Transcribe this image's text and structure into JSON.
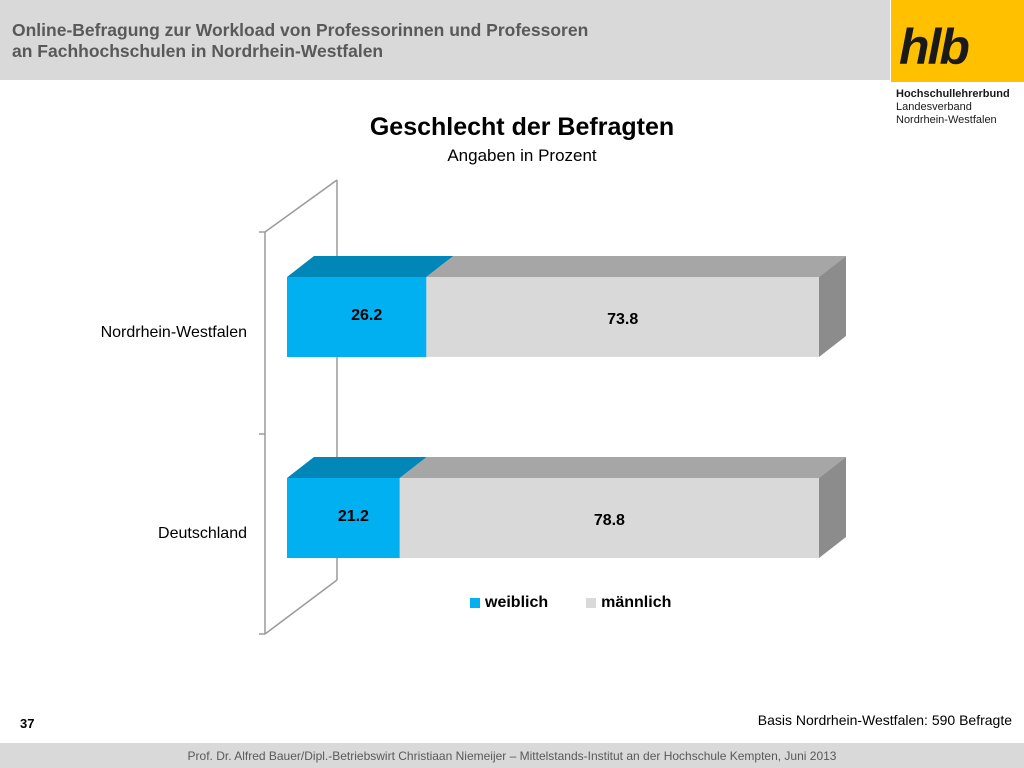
{
  "header": {
    "title_line1": "Online-Befragung  zur  Workload von Professorinnen und Professoren",
    "title_line2": "an Fachhochschulen in Nordrhein-Westfalen"
  },
  "logo": {
    "text": "hlb",
    "line1": "Hochschullehrerbund",
    "line2": "Landesverband",
    "line3": "Nordrhein-Westfalen"
  },
  "chart_data": {
    "type": "bar",
    "orientation": "horizontal",
    "stacked": true,
    "title": "Geschlecht der Befragten",
    "subtitle": "Angaben in Prozent",
    "categories": [
      "Nordrhein-Westfalen",
      "Deutschland"
    ],
    "series": [
      {
        "name": "weiblich",
        "values": [
          26.2,
          21.2
        ],
        "color": "#00b0f0"
      },
      {
        "name": "männlich",
        "values": [
          73.8,
          78.8
        ],
        "color": "#d9d9d9"
      }
    ],
    "xlim": [
      0,
      100
    ],
    "legend_position": "bottom"
  },
  "footer": {
    "page_number": "37",
    "basis": "Basis Nordrhein-Westfalen: 590 Befragte",
    "credit": "Prof. Dr. Alfred Bauer/Dipl.-Betriebswirt Christiaan Niemeijer – Mittelstands-Institut an der Hochschule Kempten, Juni 2013"
  }
}
